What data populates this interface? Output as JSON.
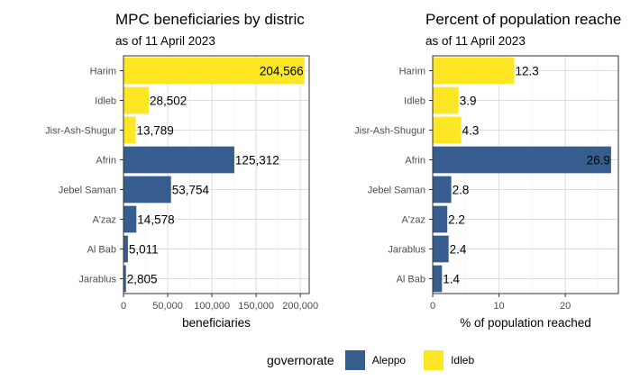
{
  "colors": {
    "Aleppo": "#365d8d",
    "Idleb": "#fde725"
  },
  "legend": {
    "title": "governorate",
    "items": [
      {
        "key": "Aleppo",
        "label": "Aleppo"
      },
      {
        "key": "Idleb",
        "label": "Idleb"
      }
    ]
  },
  "chart_data": [
    {
      "type": "bar",
      "orientation": "horizontal",
      "title": "MPC beneficiaries by distric",
      "subtitle": "as of 11 April 2023",
      "xlabel": "beneficiaries",
      "ylabel": "",
      "xlim": [
        0,
        210000
      ],
      "xticks": [
        0,
        50000,
        100000,
        150000,
        200000
      ],
      "xtick_labels": [
        "0",
        "50,000",
        "100,000",
        "150,000",
        "200,000"
      ],
      "categories": [
        "Harim",
        "Idleb",
        "Jisr-Ash-Shugur",
        "Afrin",
        "Jebel Saman",
        "A'zaz",
        "Al Bab",
        "Jarablus"
      ],
      "values": [
        204566,
        28502,
        13789,
        125312,
        53754,
        14578,
        5011,
        2805
      ],
      "value_labels": [
        "204,566",
        "28,502",
        "13,789",
        "125,312",
        "53,754",
        "14,578",
        "5,011",
        "2,805"
      ],
      "governorate": [
        "Idleb",
        "Idleb",
        "Idleb",
        "Aleppo",
        "Aleppo",
        "Aleppo",
        "Aleppo",
        "Aleppo"
      ],
      "grid": true,
      "legend_position": "bottom"
    },
    {
      "type": "bar",
      "orientation": "horizontal",
      "title": "Percent of population reache",
      "subtitle": "as of 11 April 2023",
      "xlabel": "% of population reached",
      "ylabel": "",
      "xlim": [
        0,
        28
      ],
      "xticks": [
        0,
        10,
        20
      ],
      "xtick_labels": [
        "0",
        "10",
        "20"
      ],
      "categories": [
        "Harim",
        "Idleb",
        "Jisr-Ash-Shugur",
        "Afrin",
        "Jebel Saman",
        "A'zaz",
        "Jarablus",
        "Al Bab"
      ],
      "values": [
        12.3,
        3.9,
        4.3,
        26.9,
        2.8,
        2.2,
        2.4,
        1.4
      ],
      "value_labels": [
        "12.3",
        "3.9",
        "4.3",
        "26.9",
        "2.8",
        "2.2",
        "2.4",
        "1.4"
      ],
      "governorate": [
        "Idleb",
        "Idleb",
        "Idleb",
        "Aleppo",
        "Aleppo",
        "Aleppo",
        "Aleppo",
        "Aleppo"
      ],
      "grid": true,
      "legend_position": "bottom"
    }
  ]
}
